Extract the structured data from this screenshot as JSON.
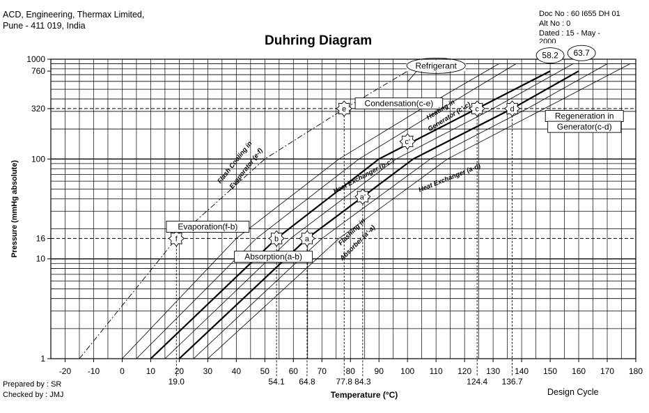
{
  "header": {
    "org_line1": "ACD, Engineering, Thermax Limited,",
    "org_line2": "Pune - 411 019, India",
    "doc_no": "Doc No :  60 I655 DH 01",
    "alt_no": "Alt No   : 0",
    "dated": "Dated    : 15 - May -",
    "dated_cont": "2000"
  },
  "footer": {
    "prepared_by": "Prepared by : SR",
    "checked_by": "Checked by  : JMJ",
    "design_cycle": "Design Cycle"
  },
  "colors": {
    "ink": "#000000",
    "background": "#ffffff"
  },
  "chart_data": {
    "type": "line",
    "title": "Duhring Diagram",
    "xlabel": "Temperature (°C)",
    "ylabel": "Pressure (mmHg absolute)",
    "xlim": [
      -25,
      180
    ],
    "ylim": [
      1,
      1000
    ],
    "y_scale": "log",
    "grid": true,
    "x_ticks": [
      -20,
      -10,
      0,
      10,
      20,
      30,
      40,
      50,
      60,
      70,
      80,
      90,
      100,
      110,
      120,
      130,
      140,
      150,
      160,
      170,
      180
    ],
    "x_tick_labels": [
      "-20",
      "-10",
      "0",
      "10",
      "20",
      "30",
      "40",
      "50",
      "60",
      "70",
      "80",
      "90",
      "100",
      "110",
      "120",
      "130",
      "140",
      "150",
      "160",
      "170",
      "180"
    ],
    "y_ticks": [
      1,
      10,
      16,
      100,
      320,
      760,
      1000
    ],
    "y_tick_labels": [
      "1",
      "10",
      "16",
      "100",
      "320",
      "760",
      "1000"
    ],
    "x_markers": [
      {
        "value": 19.0,
        "label": "19.0"
      },
      {
        "value": 54.1,
        "label": "54.1"
      },
      {
        "value": 64.8,
        "label": "64.8"
      },
      {
        "value": 77.8,
        "label": "77.8"
      },
      {
        "value": 84.3,
        "label": "84.3"
      },
      {
        "value": 124.4,
        "label": "124.4"
      },
      {
        "value": 136.7,
        "label": "136.7"
      }
    ],
    "levels": [
      {
        "value": 16,
        "label": "16"
      },
      {
        "value": 320,
        "label": "320"
      }
    ],
    "series": [
      {
        "name": "Refrigerant",
        "style": "dashdot",
        "x": [
          -15,
          19,
          50,
          78,
          100
        ],
        "y": [
          1,
          16,
          100,
          320,
          760
        ]
      },
      {
        "name": "58.2",
        "style": "bold",
        "x": [
          10,
          54.1,
          90,
          124.4,
          150
        ],
        "y": [
          1,
          16,
          100,
          320,
          760
        ]
      },
      {
        "name": "63.7",
        "style": "bold",
        "x": [
          20,
          64.8,
          102,
          136.7,
          160
        ],
        "y": [
          1,
          16,
          100,
          320,
          760
        ]
      },
      {
        "name": "",
        "style": "thin",
        "x": [
          0,
          40,
          76,
          105,
          132
        ],
        "y": [
          1,
          16,
          100,
          320,
          900
        ]
      },
      {
        "name": "",
        "style": "thin",
        "x": [
          5,
          47,
          83,
          112,
          138
        ],
        "y": [
          1,
          16,
          100,
          320,
          900
        ]
      },
      {
        "name": "",
        "style": "thin",
        "x": [
          15,
          59,
          96,
          130,
          158
        ],
        "y": [
          1,
          16,
          100,
          320,
          900
        ]
      },
      {
        "name": "",
        "style": "thin",
        "x": [
          25,
          70,
          108,
          142,
          170
        ],
        "y": [
          1,
          16,
          100,
          320,
          900
        ]
      },
      {
        "name": "",
        "style": "thin",
        "x": [
          30,
          76,
          114,
          148,
          178
        ],
        "y": [
          1,
          16,
          100,
          320,
          900
        ]
      }
    ],
    "state_points": [
      {
        "label": "a",
        "x": 64.8,
        "y": 16
      },
      {
        "label": "b",
        "x": 54.1,
        "y": 16
      },
      {
        "label": "c",
        "x": 124.4,
        "y": 320
      },
      {
        "label": "d",
        "x": 136.7,
        "y": 320
      },
      {
        "label": "e",
        "x": 77.8,
        "y": 320
      },
      {
        "label": "f",
        "x": 19.0,
        "y": 16
      },
      {
        "label": "a'",
        "x": 84.3,
        "y": 42
      },
      {
        "label": "c'",
        "x": 100,
        "y": 150
      }
    ],
    "annotations": [
      {
        "text": "Refrigerant",
        "x": 110,
        "y": 860
      },
      {
        "text": "Condensation(c-e)",
        "x": 97,
        "y": 360
      },
      {
        "text": "Evaporation(f-b)",
        "x": 30,
        "y": 21
      },
      {
        "text": "Absorption(a-b)",
        "x": 53,
        "y": 10.5
      },
      {
        "text": "Regeneration in",
        "x": 162,
        "y": 270
      },
      {
        "text": "Generator(c-d)",
        "x": 162,
        "y": 210
      }
    ],
    "line_labels": [
      {
        "text": "Flash Cooling in",
        "x": 40,
        "y": 90,
        "angle": -52
      },
      {
        "text": "Evaporator (e-f)",
        "x": 44,
        "y": 78,
        "angle": -52
      },
      {
        "text": "Heating in",
        "x": 112,
        "y": 300,
        "angle": -32
      },
      {
        "text": "Generator (c'-c)",
        "x": 115,
        "y": 255,
        "angle": -32
      },
      {
        "text": "Heat Exchanger (b-c')",
        "x": 85,
        "y": 65,
        "angle": -28
      },
      {
        "text": "Heat Exchanger (a-d)",
        "x": 115,
        "y": 62,
        "angle": -22
      },
      {
        "text": "Flashing in",
        "x": 81,
        "y": 18,
        "angle": -45
      },
      {
        "text": "Absorber (a'-a)",
        "x": 83,
        "y": 14,
        "angle": -45
      }
    ],
    "callouts": [
      {
        "label": "58.2",
        "x": 150,
        "y": 900
      },
      {
        "label": "63.7",
        "x": 161,
        "y": 950
      }
    ]
  }
}
